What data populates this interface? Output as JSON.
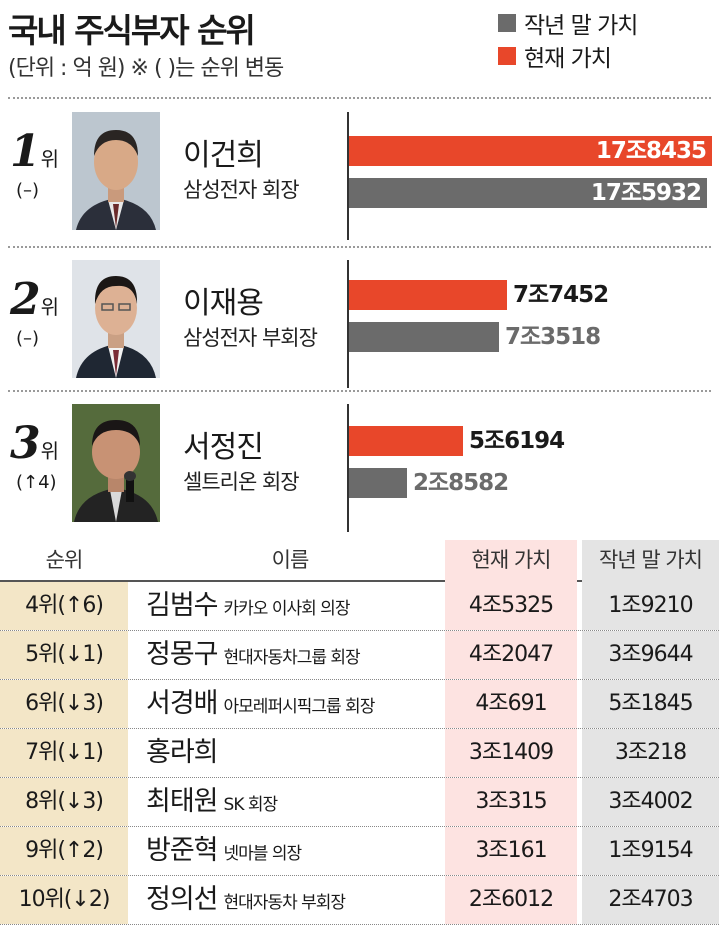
{
  "header": {
    "title": "국내 주식부자 순위",
    "subtitle": "(단위 : 억 원) ※ (  )는 순위 변동"
  },
  "legend": [
    {
      "label": "작년 말 가치",
      "color": "#6b6b6b"
    },
    {
      "label": "현재 가치",
      "color": "#e8472a"
    }
  ],
  "top3": [
    {
      "rank": "1",
      "rank_suffix": "위",
      "change": "(–)",
      "name": "이건희",
      "title": "삼성전자 회장",
      "photo_icon": "portrait-photo",
      "current_label": "17조8435",
      "previous_label": "17조5932"
    },
    {
      "rank": "2",
      "rank_suffix": "위",
      "change": "(–)",
      "name": "이재용",
      "title": "삼성전자 부회장",
      "photo_icon": "portrait-photo",
      "current_label": "7조7452",
      "previous_label": "7조3518"
    },
    {
      "rank": "3",
      "rank_suffix": "위",
      "change": "(↑4)",
      "name": "서정진",
      "title": "셀트리온 회장",
      "photo_icon": "portrait-photo",
      "current_label": "5조6194",
      "previous_label": "2조8582"
    }
  ],
  "table": {
    "headers": [
      "순위",
      "이름",
      "현재 가치",
      "작년 말 가치"
    ],
    "rows": [
      {
        "rank": "4위(↑6)",
        "name": "김범수",
        "title": "카카오 이사회 의장",
        "current": "4조5325",
        "previous": "1조9210"
      },
      {
        "rank": "5위(↓1)",
        "name": "정몽구",
        "title": "현대자동차그룹 회장",
        "current": "4조2047",
        "previous": "3조9644"
      },
      {
        "rank": "6위(↓3)",
        "name": "서경배",
        "title": "아모레퍼시픽그룹 회장",
        "current": "4조691",
        "previous": "5조1845"
      },
      {
        "rank": "7위(↓1)",
        "name": "홍라희",
        "title": "",
        "current": "3조1409",
        "previous": "3조218"
      },
      {
        "rank": "8위(↓3)",
        "name": "최태원",
        "title": "SK 회장",
        "current": "3조315",
        "previous": "3조4002"
      },
      {
        "rank": "9위(↑2)",
        "name": "방준혁",
        "title": "넷마블 의장",
        "current": "3조161",
        "previous": "1조9154"
      },
      {
        "rank": "10위(↓2)",
        "name": "정의선",
        "title": "현대자동차 부회장",
        "current": "2조6012",
        "previous": "2조4703"
      }
    ]
  },
  "chart_data": {
    "type": "bar",
    "title": "국내 주식부자 순위",
    "unit": "억 원",
    "categories": [
      "이건희",
      "이재용",
      "서정진"
    ],
    "series": [
      {
        "name": "현재 가치",
        "values": [
          178435,
          77452,
          56194
        ],
        "color": "#e8472a"
      },
      {
        "name": "작년 말 가치",
        "values": [
          175932,
          73518,
          28582
        ],
        "color": "#6b6b6b"
      }
    ],
    "xlim": [
      0,
      178435
    ]
  }
}
